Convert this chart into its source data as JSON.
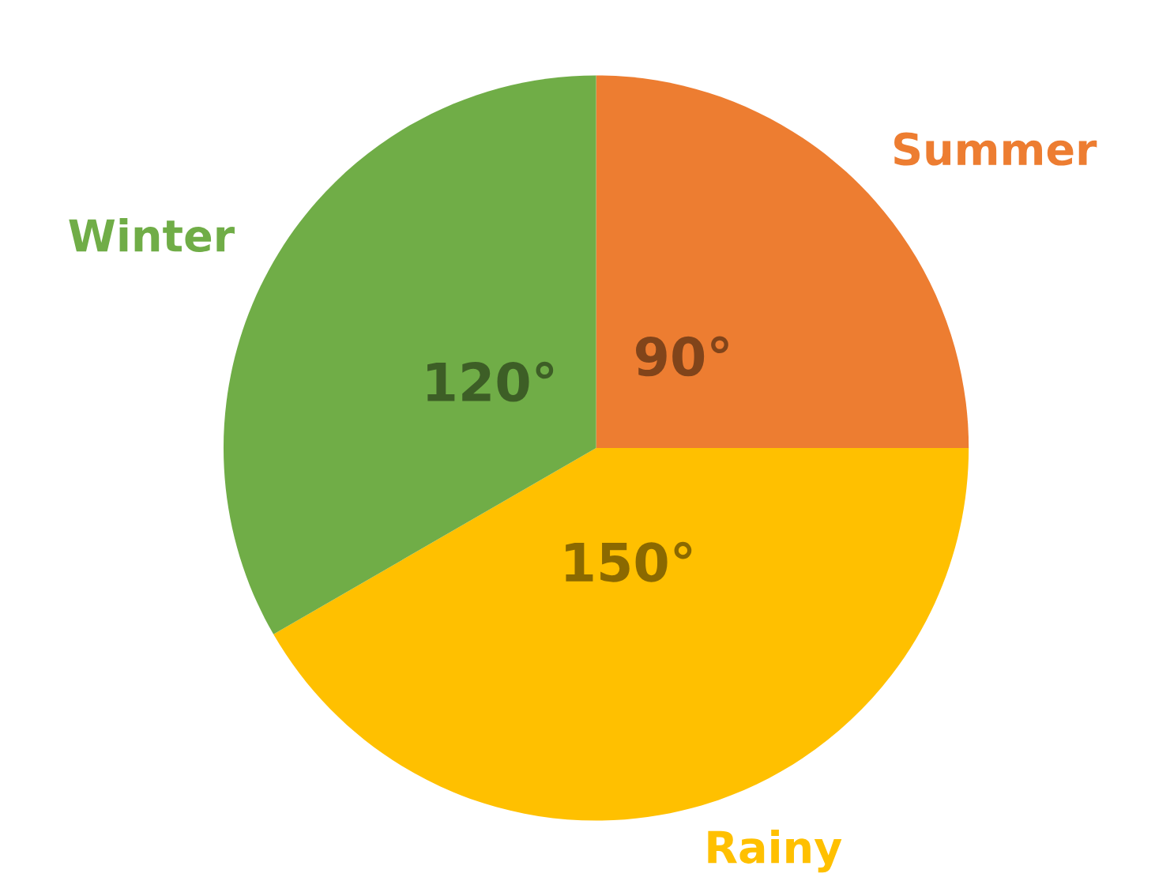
{
  "chart_data": {
    "type": "pie",
    "categories": [
      "Summer",
      "Rainy",
      "Winter"
    ],
    "values": [
      90,
      150,
      120
    ],
    "colors": [
      "#ed7d31",
      "#ffc000",
      "#70ad47"
    ],
    "value_labels": [
      "90°",
      "150°",
      "120°"
    ],
    "legend": false
  }
}
